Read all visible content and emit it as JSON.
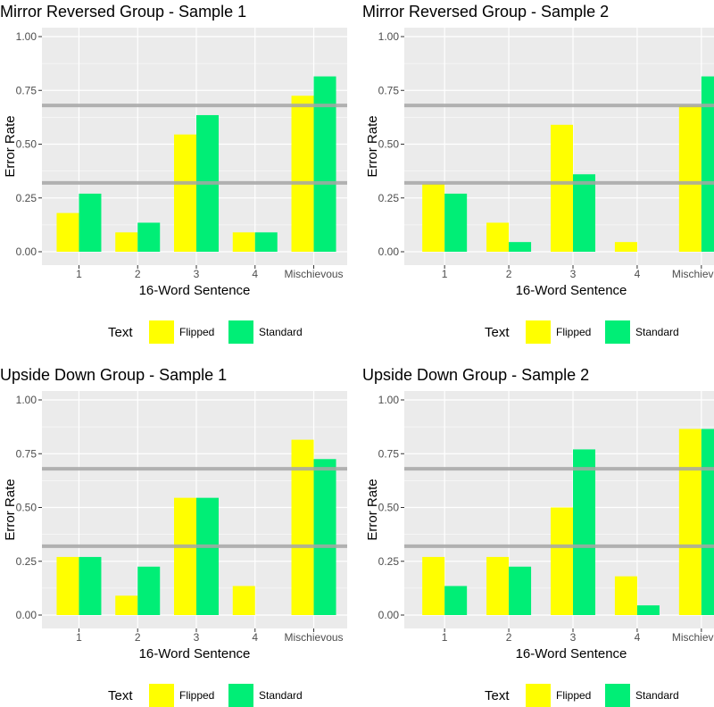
{
  "colors": {
    "flipped": "#ffff00",
    "standard": "#00ee76",
    "panel_bg": "#ebebeb",
    "grid_major": "#ffffff",
    "ref_line": "#a6a6a6"
  },
  "legend": {
    "title": "Text",
    "entries": [
      "Flipped",
      "Standard"
    ]
  },
  "chart_data": [
    {
      "type": "bar",
      "title": "Mirror Reversed Group - Sample 1",
      "xlabel": "16-Word Sentence",
      "ylabel": "Error Rate",
      "categories": [
        "1",
        "2",
        "3",
        "4",
        "Mischievous"
      ],
      "ylim": [
        0,
        1
      ],
      "yticks": [
        "0.00",
        "0.25",
        "0.50",
        "0.75",
        "1.00"
      ],
      "reference_lines": [
        0.32,
        0.68
      ],
      "series": [
        {
          "name": "Flipped",
          "values": [
            0.18,
            0.09,
            0.545,
            0.09,
            0.725
          ]
        },
        {
          "name": "Standard",
          "values": [
            0.27,
            0.135,
            0.635,
            0.09,
            0.815
          ]
        }
      ]
    },
    {
      "type": "bar",
      "title": "Mirror Reversed Group - Sample 2",
      "xlabel": "16-Word Sentence",
      "ylabel": "Error Rate",
      "categories": [
        "1",
        "2",
        "3",
        "4",
        "Mischievous"
      ],
      "ylim": [
        0,
        1
      ],
      "yticks": [
        "0.00",
        "0.25",
        "0.50",
        "0.75",
        "1.00"
      ],
      "reference_lines": [
        0.32,
        0.68
      ],
      "series": [
        {
          "name": "Flipped",
          "values": [
            0.315,
            0.135,
            0.59,
            0.045,
            0.68
          ]
        },
        {
          "name": "Standard",
          "values": [
            0.27,
            0.045,
            0.36,
            0,
            0.815
          ]
        }
      ]
    },
    {
      "type": "bar",
      "title": "Upside Down Group - Sample 1",
      "xlabel": "16-Word Sentence",
      "ylabel": "Error Rate",
      "categories": [
        "1",
        "2",
        "3",
        "4",
        "Mischievous"
      ],
      "ylim": [
        0,
        1
      ],
      "yticks": [
        "0.00",
        "0.25",
        "0.50",
        "0.75",
        "1.00"
      ],
      "reference_lines": [
        0.32,
        0.68
      ],
      "series": [
        {
          "name": "Flipped",
          "values": [
            0.27,
            0.09,
            0.545,
            0.135,
            0.815
          ]
        },
        {
          "name": "Standard",
          "values": [
            0.27,
            0.225,
            0.545,
            0,
            0.725
          ]
        }
      ]
    },
    {
      "type": "bar",
      "title": "Upside Down Group - Sample 2",
      "xlabel": "16-Word Sentence",
      "ylabel": "Error Rate",
      "categories": [
        "1",
        "2",
        "3",
        "4",
        "Mischievous"
      ],
      "ylim": [
        0,
        1
      ],
      "yticks": [
        "0.00",
        "0.25",
        "0.50",
        "0.75",
        "1.00"
      ],
      "reference_lines": [
        0.32,
        0.68
      ],
      "series": [
        {
          "name": "Flipped",
          "values": [
            0.27,
            0.27,
            0.5,
            0.18,
            0.865
          ]
        },
        {
          "name": "Standard",
          "values": [
            0.135,
            0.225,
            0.77,
            0.045,
            0.865
          ]
        }
      ]
    }
  ]
}
